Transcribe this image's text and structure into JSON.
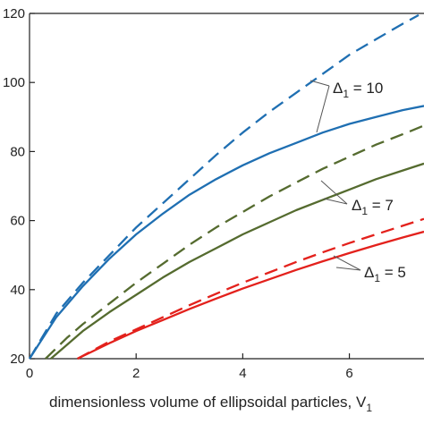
{
  "chart_data": {
    "type": "line",
    "xlabel": "dimensionless volume of ellipsoidal particles, V",
    "xlabel_subscript": "1",
    "ylabel": "",
    "xlim": [
      0,
      7.4
    ],
    "ylim": [
      20,
      120
    ],
    "x_ticks": [
      0,
      2,
      4,
      6
    ],
    "y_ticks": [
      20,
      40,
      60,
      80,
      100,
      120
    ],
    "x_tick_labels": [
      "0",
      "2",
      "4",
      "6"
    ],
    "y_tick_labels": [
      "20",
      "40",
      "60",
      "80",
      "100",
      "120"
    ],
    "grid": false,
    "series": [
      {
        "color": "#1f6fb2",
        "style": "dashed",
        "points": [
          [
            0,
            20
          ],
          [
            0.5,
            33
          ],
          [
            1,
            42
          ],
          [
            1.5,
            50
          ],
          [
            2,
            58
          ],
          [
            2.5,
            65
          ],
          [
            3,
            72
          ],
          [
            3.5,
            79
          ],
          [
            4,
            85.5
          ],
          [
            4.5,
            91.5
          ],
          [
            5,
            97
          ],
          [
            5.5,
            102.5
          ],
          [
            6,
            108
          ],
          [
            6.5,
            112.5
          ],
          [
            7,
            117
          ],
          [
            7.3,
            119.5
          ]
        ]
      },
      {
        "color": "#1f6fb2",
        "style": "solid",
        "points": [
          [
            0,
            20
          ],
          [
            0.5,
            32
          ],
          [
            1,
            41
          ],
          [
            1.5,
            49
          ],
          [
            2,
            56
          ],
          [
            2.5,
            62
          ],
          [
            3,
            67.5
          ],
          [
            3.5,
            72
          ],
          [
            4,
            76
          ],
          [
            4.5,
            79.5
          ],
          [
            5,
            82.5
          ],
          [
            5.5,
            85.5
          ],
          [
            6,
            88
          ],
          [
            6.5,
            90
          ],
          [
            7,
            92
          ],
          [
            7.4,
            93.2
          ]
        ]
      },
      {
        "color": "#556b2f",
        "style": "dashed",
        "points": [
          [
            0.3,
            20
          ],
          [
            0.7,
            26
          ],
          [
            1,
            30
          ],
          [
            1.5,
            36
          ],
          [
            2,
            42
          ],
          [
            2.5,
            47.5
          ],
          [
            3,
            53
          ],
          [
            3.5,
            58
          ],
          [
            4,
            62.5
          ],
          [
            4.5,
            67
          ],
          [
            5,
            71
          ],
          [
            5.5,
            75
          ],
          [
            6,
            78.5
          ],
          [
            6.5,
            82
          ],
          [
            7,
            85
          ],
          [
            7.4,
            87.5
          ]
        ]
      },
      {
        "color": "#556b2f",
        "style": "solid",
        "points": [
          [
            0.4,
            20
          ],
          [
            0.7,
            24
          ],
          [
            1,
            28
          ],
          [
            1.5,
            33.5
          ],
          [
            2,
            38.5
          ],
          [
            2.5,
            43.5
          ],
          [
            3,
            48
          ],
          [
            3.5,
            52
          ],
          [
            4,
            56
          ],
          [
            4.5,
            59.5
          ],
          [
            5,
            63
          ],
          [
            5.5,
            66
          ],
          [
            6,
            69
          ],
          [
            6.5,
            72
          ],
          [
            7,
            74.5
          ],
          [
            7.4,
            76.5
          ]
        ]
      },
      {
        "color": "#e3211c",
        "style": "dashed",
        "points": [
          [
            0.9,
            20
          ],
          [
            1.5,
            25
          ],
          [
            2,
            28.5
          ],
          [
            2.5,
            32
          ],
          [
            3,
            35.5
          ],
          [
            3.5,
            38.8
          ],
          [
            4,
            42
          ],
          [
            4.5,
            45
          ],
          [
            5,
            48
          ],
          [
            5.5,
            50.8
          ],
          [
            6,
            53.5
          ],
          [
            6.5,
            56
          ],
          [
            7,
            58.5
          ],
          [
            7.4,
            60.5
          ]
        ]
      },
      {
        "color": "#e3211c",
        "style": "solid",
        "points": [
          [
            0.9,
            20
          ],
          [
            1.5,
            24.5
          ],
          [
            2,
            28
          ],
          [
            2.5,
            31.2
          ],
          [
            3,
            34.4
          ],
          [
            3.5,
            37.4
          ],
          [
            4,
            40.3
          ],
          [
            4.5,
            43
          ],
          [
            5,
            45.7
          ],
          [
            5.5,
            48.2
          ],
          [
            6,
            50.6
          ],
          [
            6.5,
            52.9
          ],
          [
            7,
            55.1
          ],
          [
            7.4,
            56.8
          ]
        ]
      }
    ],
    "annotations": [
      {
        "text": "Δ",
        "subscript": "1",
        "suffix": " = 10"
      },
      {
        "text": "Δ",
        "subscript": "1",
        "suffix": " = 7"
      },
      {
        "text": "Δ",
        "subscript": "1",
        "suffix": " = 5"
      }
    ]
  }
}
